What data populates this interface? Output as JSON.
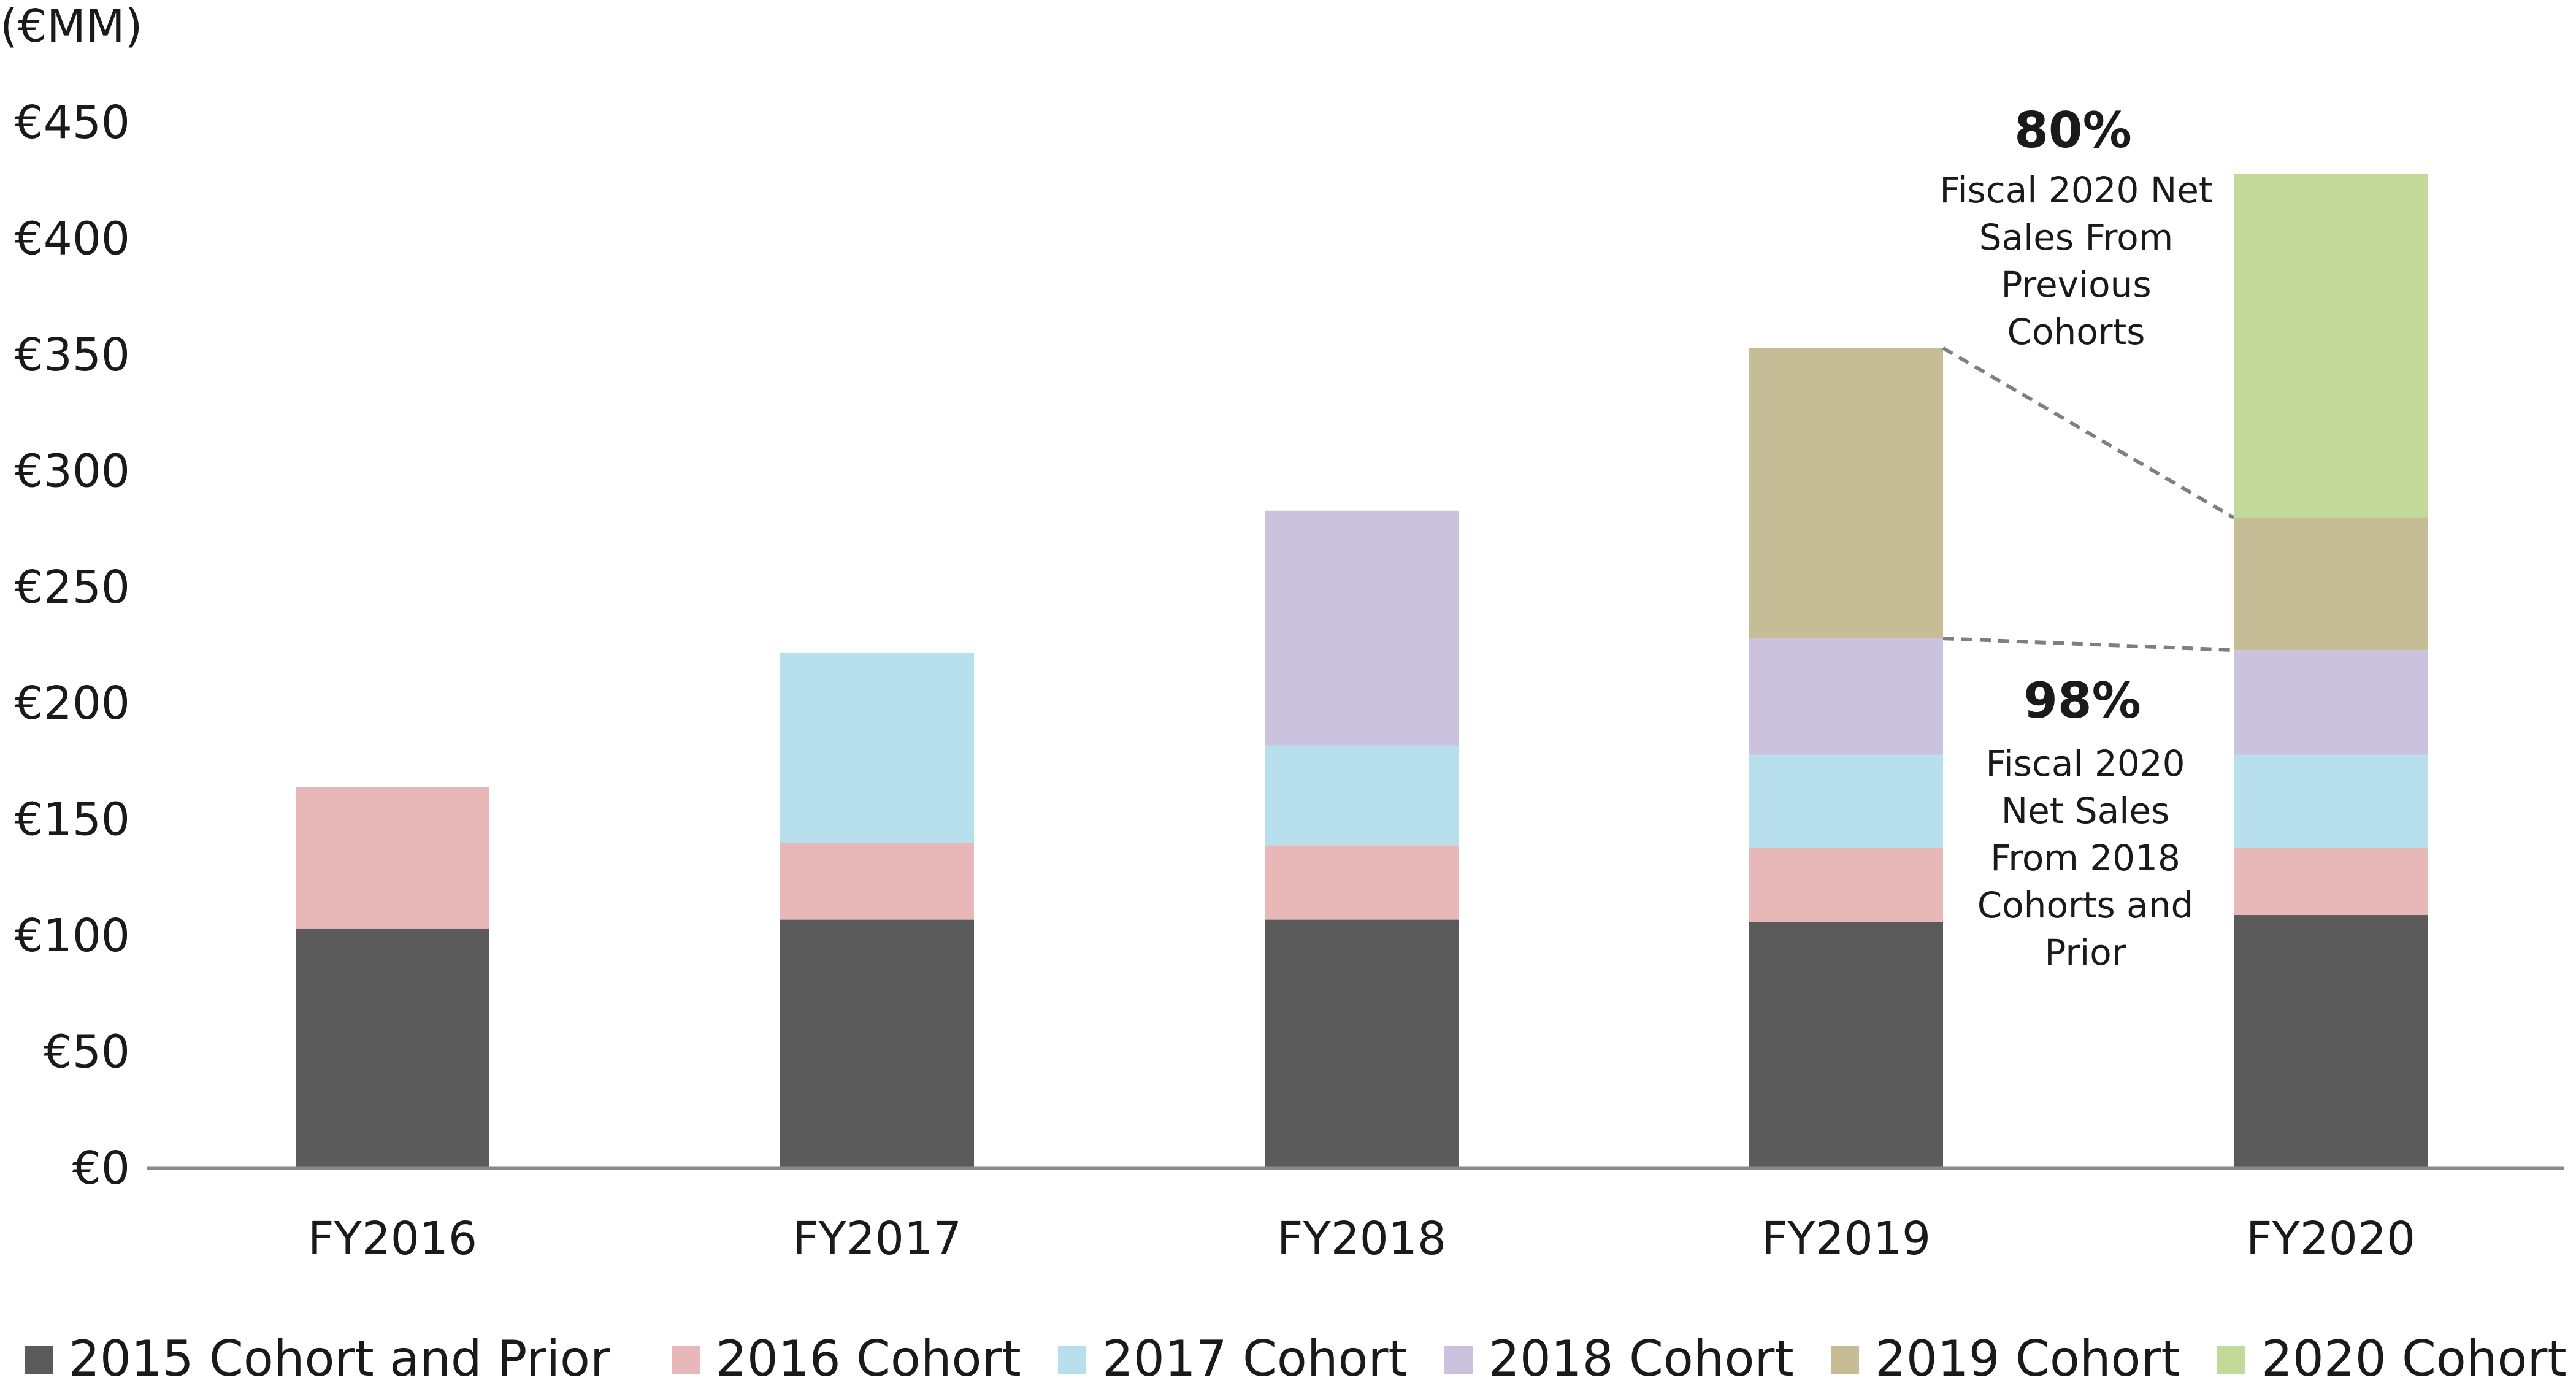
{
  "chart_data": {
    "type": "bar",
    "stacked": true,
    "unit_label": "(€MM)",
    "title": "",
    "xlabel": "",
    "ylabel": "",
    "ylim": [
      0,
      450
    ],
    "yticks": [
      0,
      50,
      100,
      150,
      200,
      250,
      300,
      350,
      400,
      450
    ],
    "ytick_labels": [
      "€0",
      "€50",
      "€100",
      "€150",
      "€200",
      "€250",
      "€300",
      "€350",
      "€400",
      "€450"
    ],
    "categories": [
      "FY2016",
      "FY2017",
      "FY2018",
      "FY2019",
      "FY2020"
    ],
    "series": [
      {
        "name": "2015 Cohort and Prior",
        "color": "#5b5b5b",
        "values": [
          103,
          107,
          107,
          106,
          109
        ]
      },
      {
        "name": "2016 Cohort",
        "color": "#e8b8b8",
        "values": [
          61,
          33,
          32,
          32,
          29
        ]
      },
      {
        "name": "2017 Cohort",
        "color": "#b8dfec",
        "values": [
          0,
          82,
          43,
          40,
          40
        ]
      },
      {
        "name": "2018 Cohort",
        "color": "#cbc2dd",
        "values": [
          0,
          0,
          101,
          50,
          45
        ]
      },
      {
        "name": "2019 Cohort",
        "color": "#c6bd96",
        "values": [
          0,
          0,
          0,
          125,
          57
        ]
      },
      {
        "name": "2020 Cohort",
        "color": "#c2d99a",
        "values": [
          0,
          0,
          0,
          0,
          148
        ]
      }
    ],
    "grid": false,
    "legend_position": "bottom",
    "annotations": [
      {
        "value": "80%",
        "lines": [
          "Fiscal 2020 Net",
          "Sales From",
          "Previous",
          "Cohorts"
        ]
      },
      {
        "value": "98%",
        "lines": [
          "Fiscal 2020",
          "Net Sales",
          "From 2018",
          "Cohorts and",
          "Prior"
        ]
      }
    ]
  }
}
